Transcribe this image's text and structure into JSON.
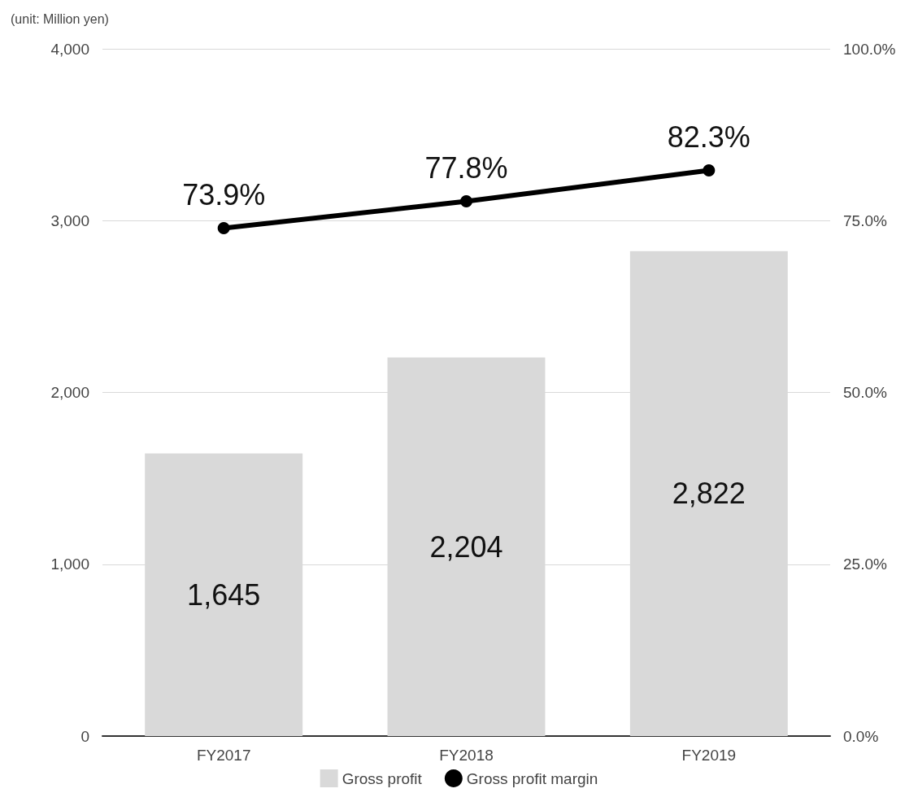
{
  "chart_data": {
    "type": "bar",
    "annotations": [
      "(unit: Million yen)"
    ],
    "categories": [
      "FY2017",
      "FY2018",
      "FY2019"
    ],
    "series": [
      {
        "name": "Gross profit",
        "color": "#d9d9d9",
        "values": [
          1645,
          2204,
          2822
        ],
        "value_labels": [
          "1,645",
          "2,204",
          "2,822"
        ]
      },
      {
        "name": "Gross profit margin",
        "type": "line",
        "axis": "y2",
        "color": "#000000",
        "values": [
          73.9,
          77.8,
          82.3
        ],
        "value_labels": [
          "73.9%",
          "77.8%",
          "82.3%"
        ]
      }
    ],
    "ylim": [
      0,
      4000
    ],
    "yticks": [
      {
        "value": 0,
        "label": "0"
      },
      {
        "value": 1000,
        "label": "1,000"
      },
      {
        "value": 2000,
        "label": "2,000"
      },
      {
        "value": 3000,
        "label": "3,000"
      },
      {
        "value": 4000,
        "label": "4,000"
      }
    ],
    "y2lim": [
      0,
      100
    ],
    "y2ticks": [
      {
        "value": 0,
        "label": "0.0%"
      },
      {
        "value": 25,
        "label": "25.0%"
      },
      {
        "value": 50,
        "label": "50.0%"
      },
      {
        "value": 75,
        "label": "75.0%"
      },
      {
        "value": 100,
        "label": "100.0%"
      }
    ],
    "grid": "y",
    "legend": "bottom",
    "marker": "circle",
    "line_style": "solid"
  }
}
